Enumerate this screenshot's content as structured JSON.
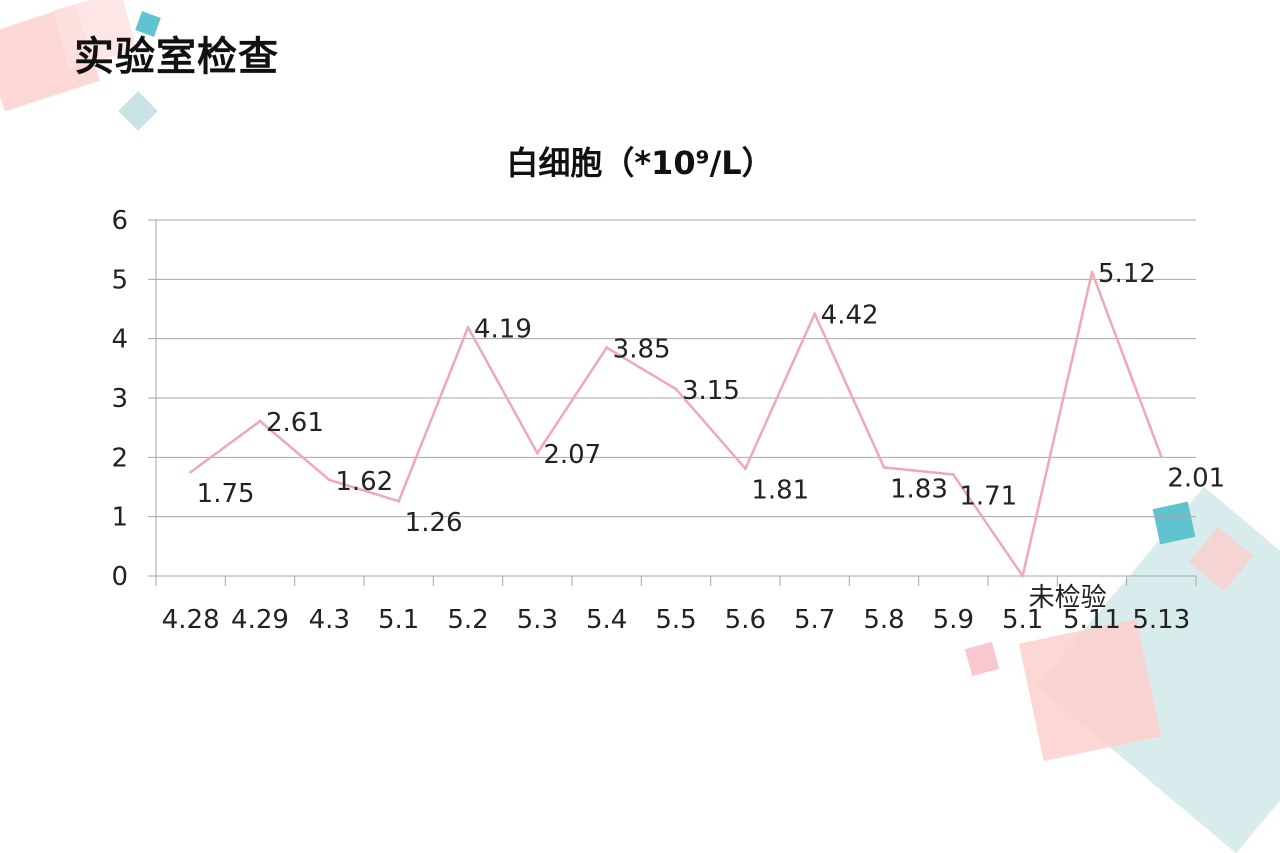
{
  "header": {
    "title": "实验室检查"
  },
  "colors": {
    "line": "#f0a9b4",
    "grid": "#a6a6a6",
    "pink": "#f9c7c4",
    "teal": "#5fc4cf",
    "pale_teal": "#bfe0e2"
  },
  "chart_data": {
    "type": "line",
    "title": "白细胞（*10⁹/L）",
    "categories": [
      "4.28",
      "4.29",
      "4.3",
      "5.1",
      "5.2",
      "5.3",
      "5.4",
      "5.5",
      "5.6",
      "5.7",
      "5.8",
      "5.9",
      "5.1",
      "5.11",
      "5.13"
    ],
    "series": [
      {
        "values": [
          1.75,
          2.61,
          1.62,
          1.26,
          4.19,
          2.07,
          3.85,
          3.15,
          1.81,
          4.42,
          1.83,
          1.71,
          0,
          5.12,
          2.01
        ]
      }
    ],
    "data_labels": [
      "1.75",
      "2.61",
      "1.62",
      "1.26",
      "4.19",
      "2.07",
      "3.85",
      "3.15",
      "1.81",
      "4.42",
      "1.83",
      "1.71",
      "未检验",
      "5.12",
      "2.01"
    ],
    "ylim": [
      0,
      6
    ],
    "yticks": [
      0,
      1,
      2,
      3,
      4,
      5,
      6
    ],
    "grid": true,
    "legend": "none"
  }
}
